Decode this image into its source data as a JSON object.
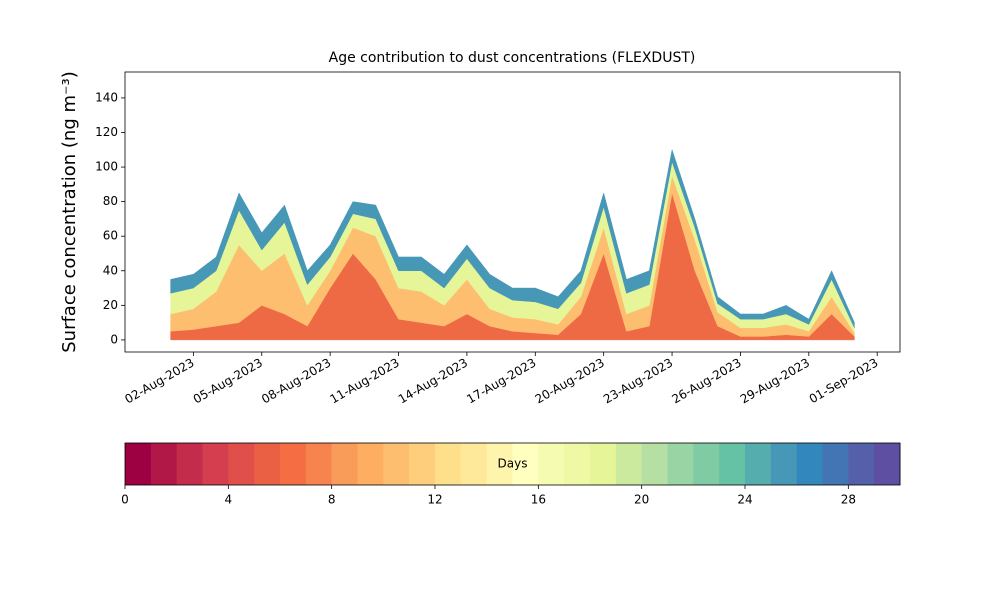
{
  "chart_data": {
    "type": "stacked_area",
    "title": "Age contribution to dust concentrations (FLEXDUST)",
    "y_label": "Surface concentration (ng m⁻³)",
    "x": [
      "01-Aug-2023",
      "02-Aug-2023",
      "03-Aug-2023",
      "04-Aug-2023",
      "05-Aug-2023",
      "06-Aug-2023",
      "07-Aug-2023",
      "08-Aug-2023",
      "09-Aug-2023",
      "10-Aug-2023",
      "11-Aug-2023",
      "12-Aug-2023",
      "13-Aug-2023",
      "14-Aug-2023",
      "15-Aug-2023",
      "16-Aug-2023",
      "17-Aug-2023",
      "18-Aug-2023",
      "19-Aug-2023",
      "20-Aug-2023",
      "21-Aug-2023",
      "22-Aug-2023",
      "23-Aug-2023",
      "24-Aug-2023",
      "25-Aug-2023",
      "26-Aug-2023",
      "27-Aug-2023",
      "28-Aug-2023",
      "29-Aug-2023",
      "30-Aug-2023",
      "31-Aug-2023"
    ],
    "series": [
      {
        "color": "#ee6a45",
        "values": [
          5,
          6,
          8,
          10,
          20,
          15,
          8,
          30,
          50,
          35,
          12,
          10,
          8,
          15,
          8,
          5,
          4,
          3,
          15,
          50,
          5,
          8,
          85,
          40,
          8,
          2,
          2,
          3,
          2,
          15,
          2
        ]
      },
      {
        "color": "#fdbf6f",
        "values": [
          10,
          12,
          20,
          45,
          20,
          35,
          12,
          10,
          15,
          25,
          18,
          18,
          12,
          20,
          10,
          8,
          8,
          6,
          10,
          15,
          10,
          12,
          10,
          18,
          8,
          5,
          5,
          6,
          3,
          10,
          2
        ]
      },
      {
        "color": "#e6f598",
        "values": [
          12,
          12,
          12,
          20,
          12,
          18,
          12,
          8,
          8,
          10,
          10,
          12,
          10,
          12,
          12,
          10,
          10,
          9,
          8,
          12,
          12,
          12,
          8,
          7,
          5,
          5,
          5,
          6,
          4,
          10,
          3
        ]
      },
      {
        "color": "#4698b6",
        "values": [
          8,
          8,
          8,
          10,
          10,
          10,
          8,
          7,
          7,
          8,
          8,
          8,
          8,
          8,
          8,
          7,
          8,
          7,
          7,
          8,
          8,
          8,
          7,
          5,
          4,
          3,
          3,
          5,
          3,
          5,
          3
        ]
      }
    ],
    "xlim": [
      "30-Jul-2023",
      "02-Sep-2023"
    ],
    "xticks": [
      "02-Aug-2023",
      "05-Aug-2023",
      "08-Aug-2023",
      "11-Aug-2023",
      "14-Aug-2023",
      "17-Aug-2023",
      "20-Aug-2023",
      "23-Aug-2023",
      "26-Aug-2023",
      "29-Aug-2023",
      "01-Sep-2023"
    ],
    "ylim": [
      -7,
      155
    ],
    "yticks": [
      0,
      20,
      40,
      60,
      80,
      100,
      120,
      140
    ],
    "colorbar": {
      "label": "Days",
      "lim": [
        0,
        30
      ],
      "ticks": [
        0,
        4,
        8,
        12,
        16,
        20,
        24,
        28
      ],
      "colors": [
        "#9e0142",
        "#b11747",
        "#c42c4b",
        "#d53e4f",
        "#e04f4a",
        "#ea6045",
        "#f46d43",
        "#f7844e",
        "#f99b59",
        "#fdae61",
        "#fdbf6f",
        "#fece7c",
        "#fee08b",
        "#fee99a",
        "#fff4ac",
        "#ffffbf",
        "#f6fbb2",
        "#eef8a5",
        "#e6f598",
        "#ccea9e",
        "#b5dfa3",
        "#99d5a4",
        "#7fcba4",
        "#66c2a5",
        "#56adad",
        "#4698b6",
        "#3288bd",
        "#4374b4",
        "#5461aa",
        "#5e4fa2"
      ]
    }
  }
}
